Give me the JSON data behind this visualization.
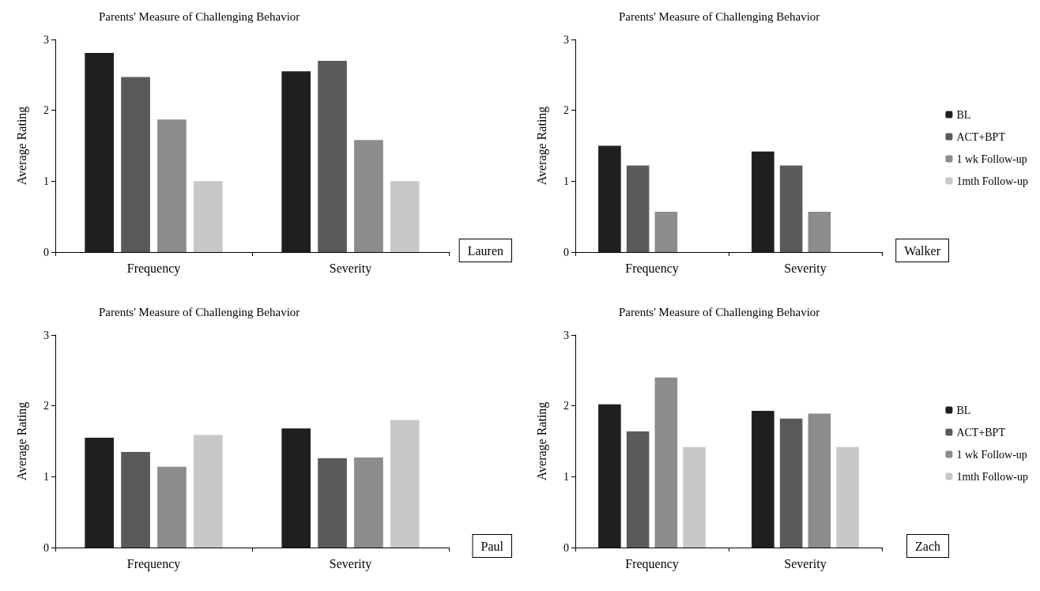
{
  "chart_data": [
    {
      "type": "bar",
      "title": "Parents' Measure of Challenging Behavior",
      "ylabel": "Average Rating",
      "categories": [
        "Frequency",
        "Severity"
      ],
      "series": [
        {
          "color": "#1f1f1f",
          "values": [
            2.81,
            2.55
          ]
        },
        {
          "color": "#5a5a5a",
          "values": [
            2.47,
            2.7
          ]
        },
        {
          "color": "#8c8c8c",
          "values": [
            1.87,
            1.58
          ]
        },
        {
          "color": "#c8c8c8",
          "values": [
            1.0,
            1.0
          ]
        }
      ],
      "ylim": [
        0,
        3
      ],
      "yticks": [
        0,
        1,
        2,
        3
      ],
      "grid": false,
      "legend": false,
      "annotations": [
        "Lauren"
      ]
    },
    {
      "type": "bar",
      "title": "Parents' Measure of Challenging Behavior",
      "ylabel": "Average Rating",
      "categories": [
        "Frequency",
        "Severity"
      ],
      "series": [
        {
          "name": "BL",
          "color": "#1f1f1f",
          "values": [
            1.5,
            1.42
          ]
        },
        {
          "name": "ACT+BPT",
          "color": "#5a5a5a",
          "values": [
            1.22,
            1.22
          ]
        },
        {
          "name": "1 wk Follow-up",
          "color": "#8c8c8c",
          "values": [
            0.57,
            0.57
          ]
        },
        {
          "name": "1mth Follow-up",
          "color": "#c8c8c8",
          "values": [
            null,
            null
          ]
        }
      ],
      "ylim": [
        0,
        3
      ],
      "yticks": [
        0,
        1,
        2,
        3
      ],
      "grid": false,
      "legend": "right",
      "annotations": [
        "Walker"
      ]
    },
    {
      "type": "bar",
      "title": "Parents' Measure of Challenging Behavior",
      "ylabel": "Average Rating",
      "categories": [
        "Frequency",
        "Severity"
      ],
      "series": [
        {
          "color": "#1f1f1f",
          "values": [
            1.55,
            1.68
          ]
        },
        {
          "color": "#5a5a5a",
          "values": [
            1.35,
            1.26
          ]
        },
        {
          "color": "#8c8c8c",
          "values": [
            1.14,
            1.27
          ]
        },
        {
          "color": "#c8c8c8",
          "values": [
            1.59,
            1.8
          ]
        }
      ],
      "ylim": [
        0,
        3
      ],
      "yticks": [
        0,
        1,
        2,
        3
      ],
      "grid": false,
      "legend": false,
      "annotations": [
        "Paul"
      ]
    },
    {
      "type": "bar",
      "title": "Parents' Measure of Challenging Behavior",
      "ylabel": "Average Rating",
      "categories": [
        "Frequency",
        "Severity"
      ],
      "series": [
        {
          "name": "BL",
          "color": "#1f1f1f",
          "values": [
            2.02,
            1.93
          ]
        },
        {
          "name": "ACT+BPT",
          "color": "#5a5a5a",
          "values": [
            1.64,
            1.82
          ]
        },
        {
          "name": "1 wk Follow-up",
          "color": "#8c8c8c",
          "values": [
            2.4,
            1.89
          ]
        },
        {
          "name": "1mth Follow-up",
          "color": "#c8c8c8",
          "values": [
            1.42,
            1.42
          ]
        }
      ],
      "ylim": [
        0,
        3
      ],
      "yticks": [
        0,
        1,
        2,
        3
      ],
      "grid": false,
      "legend": "right",
      "annotations": [
        "Zach"
      ]
    }
  ]
}
